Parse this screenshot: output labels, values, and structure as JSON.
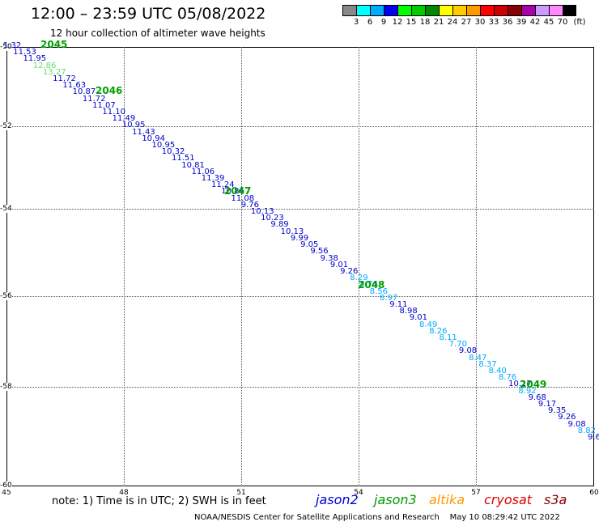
{
  "header": {
    "title": "12:00 – 23:59 UTC 05/08/2022",
    "subtitle": "12 hour collection of altimeter wave heights"
  },
  "legend": {
    "colors": [
      "#888888",
      "#00ffff",
      "#00aaff",
      "#0000ee",
      "#00ff00",
      "#00cc00",
      "#008800",
      "#ffff00",
      "#ffcc00",
      "#ff9900",
      "#ff0000",
      "#cc0000",
      "#880000",
      "#aa00aa",
      "#cc99ff",
      "#ff88ff",
      "#000000"
    ],
    "labels": [
      "3",
      "6",
      "9",
      "12",
      "15",
      "18",
      "21",
      "24",
      "27",
      "30",
      "33",
      "36",
      "39",
      "42",
      "45",
      "70",
      "(ft)"
    ]
  },
  "axes": {
    "x_ticks": [
      "45",
      "48",
      "51",
      "54",
      "57",
      "60"
    ],
    "y_ticks": [
      "-50",
      "-52",
      "-54",
      "-56",
      "-58",
      "-60"
    ]
  },
  "orbit_labels": [
    "2045",
    "2046",
    "2047",
    "2048",
    "2049"
  ],
  "wave_heights": [
    {
      "v": "1.32",
      "c": "#0000cc"
    },
    {
      "v": "11.53",
      "c": "#0000cc"
    },
    {
      "v": "11.95",
      "c": "#0000cc"
    },
    {
      "v": "12.86",
      "c": "#66dd66"
    },
    {
      "v": "13.27",
      "c": "#66dd66"
    },
    {
      "v": "11.72",
      "c": "#0000cc"
    },
    {
      "v": "11.63",
      "c": "#0000cc"
    },
    {
      "v": "10.87",
      "c": "#0000cc"
    },
    {
      "v": "11.72",
      "c": "#0000cc"
    },
    {
      "v": "11.07",
      "c": "#0000cc"
    },
    {
      "v": "11.10",
      "c": "#0000cc"
    },
    {
      "v": "11.49",
      "c": "#0000cc"
    },
    {
      "v": "10.95",
      "c": "#0000cc"
    },
    {
      "v": "11.43",
      "c": "#0000cc"
    },
    {
      "v": "10.94",
      "c": "#0000cc"
    },
    {
      "v": "10.95",
      "c": "#0000cc"
    },
    {
      "v": "10.32",
      "c": "#0000cc"
    },
    {
      "v": "11.51",
      "c": "#0000cc"
    },
    {
      "v": "10.81",
      "c": "#0000cc"
    },
    {
      "v": "11.06",
      "c": "#0000cc"
    },
    {
      "v": "11.39",
      "c": "#0000cc"
    },
    {
      "v": "11.24",
      "c": "#0000cc"
    },
    {
      "v": "10.86",
      "c": "#0000cc"
    },
    {
      "v": "11.08",
      "c": "#0000cc"
    },
    {
      "v": "9.76",
      "c": "#0000cc"
    },
    {
      "v": "10.13",
      "c": "#0000cc"
    },
    {
      "v": "10.23",
      "c": "#0000cc"
    },
    {
      "v": "9.89",
      "c": "#0000cc"
    },
    {
      "v": "10.13",
      "c": "#0000cc"
    },
    {
      "v": "9.99",
      "c": "#0000cc"
    },
    {
      "v": "9.05",
      "c": "#0000cc"
    },
    {
      "v": "9.56",
      "c": "#0000cc"
    },
    {
      "v": "9.38",
      "c": "#0000cc"
    },
    {
      "v": "9.01",
      "c": "#0000cc"
    },
    {
      "v": "9.26",
      "c": "#0000cc"
    },
    {
      "v": "8.29",
      "c": "#00aaff"
    },
    {
      "v": "8.76",
      "c": "#00aaff"
    },
    {
      "v": "8.56",
      "c": "#00aaff"
    },
    {
      "v": "8.97",
      "c": "#00aaff"
    },
    {
      "v": "9.11",
      "c": "#0000cc"
    },
    {
      "v": "8.98",
      "c": "#0000cc"
    },
    {
      "v": "9.01",
      "c": "#0000cc"
    },
    {
      "v": "8.49",
      "c": "#00aaff"
    },
    {
      "v": "8.26",
      "c": "#00aaff"
    },
    {
      "v": "8.11",
      "c": "#00aaff"
    },
    {
      "v": "7.70",
      "c": "#00aaff"
    },
    {
      "v": "9.08",
      "c": "#0000cc"
    },
    {
      "v": "8.47",
      "c": "#00aaff"
    },
    {
      "v": "8.37",
      "c": "#00aaff"
    },
    {
      "v": "8.40",
      "c": "#00aaff"
    },
    {
      "v": "8.76",
      "c": "#00aaff"
    },
    {
      "v": "10.17",
      "c": "#0000cc"
    },
    {
      "v": "8.92",
      "c": "#00aaff"
    },
    {
      "v": "9.68",
      "c": "#0000cc"
    },
    {
      "v": "9.17",
      "c": "#0000cc"
    },
    {
      "v": "9.35",
      "c": "#0000cc"
    },
    {
      "v": "9.26",
      "c": "#0000cc"
    },
    {
      "v": "9.08",
      "c": "#0000cc"
    },
    {
      "v": "8.82",
      "c": "#00aaff"
    },
    {
      "v": "9.6",
      "c": "#0000cc"
    }
  ],
  "footer": {
    "note": "note: 1) Time is in UTC; 2) SWH is in feet",
    "satellites": [
      {
        "name": "jason2",
        "color": "#0000dd"
      },
      {
        "name": "jason3",
        "color": "#009900"
      },
      {
        "name": "altika",
        "color": "#ff9900"
      },
      {
        "name": "cryosat",
        "color": "#dd0000"
      },
      {
        "name": "s3a",
        "color": "#880000"
      }
    ],
    "credit": "NOAA/NESDIS Center for Satellite Applications and Research    May 10 08:29:42 UTC 2022"
  }
}
